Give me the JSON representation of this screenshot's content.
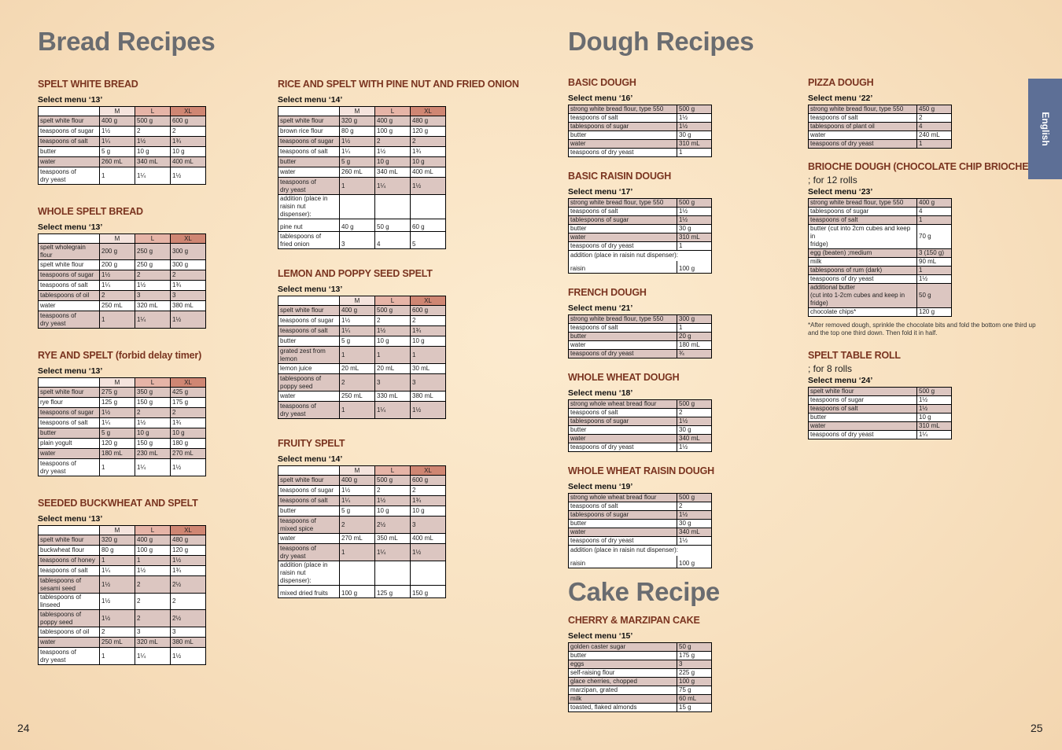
{
  "page_numbers": {
    "left": "24",
    "right": "25"
  },
  "tab_label": "English",
  "headings": {
    "bread": "Bread Recipes",
    "dough": "Dough Recipes",
    "cake": "Cake Recipe"
  },
  "size_headers": [
    "",
    "M",
    "L",
    "XL"
  ],
  "col_bread_1": [
    {
      "title": "SPELT WHITE BREAD",
      "menu": "Select menu ‘13’",
      "rows": [
        [
          "spelt white flour",
          "400 g",
          "500 g",
          "600 g"
        ],
        [
          "teaspoons of sugar",
          "1½",
          "2",
          "2"
        ],
        [
          "teaspoons of salt",
          "1¼",
          "1½",
          "1¾"
        ],
        [
          "butter",
          "5 g",
          "10 g",
          "10 g"
        ],
        [
          "water",
          "260 mL",
          "340 mL",
          "400 mL"
        ],
        [
          "teaspoons of\ndry yeast",
          "1",
          "1¼",
          "1½"
        ]
      ]
    },
    {
      "title": "WHOLE SPELT BREAD",
      "menu": "Select menu ‘13’",
      "rows": [
        [
          "spelt wholegrain flour",
          "200 g",
          "250 g",
          "300 g"
        ],
        [
          "spelt white flour",
          "200 g",
          "250 g",
          "300 g"
        ],
        [
          "teaspoons of sugar",
          "1½",
          "2",
          "2"
        ],
        [
          "teaspoons of salt",
          "1¼",
          "1½",
          "1¾"
        ],
        [
          "tablespoons of oil",
          "2",
          "3",
          "3"
        ],
        [
          "water",
          "250 mL",
          "320 mL",
          "380 mL"
        ],
        [
          "teaspoons of\ndry yeast",
          "1",
          "1¼",
          "1½"
        ]
      ]
    },
    {
      "title": "RYE AND SPELT (forbid delay timer)",
      "menu": "Select menu ‘13’",
      "rows": [
        [
          "spelt white flour",
          "275 g",
          "350 g",
          "425 g"
        ],
        [
          "rye flour",
          "125 g",
          "150 g",
          "175 g"
        ],
        [
          "teaspoons of sugar",
          "1½",
          "2",
          "2"
        ],
        [
          "teaspoons of salt",
          "1¼",
          "1½",
          "1¾"
        ],
        [
          "butter",
          "5 g",
          "10 g",
          "10 g"
        ],
        [
          "plain yogult",
          "120 g",
          "150 g",
          "180 g"
        ],
        [
          "water",
          "180 mL",
          "230 mL",
          "270 mL"
        ],
        [
          "teaspoons of\ndry yeast",
          "1",
          "1¼",
          "1½"
        ]
      ]
    },
    {
      "title": "SEEDED BUCKWHEAT AND SPELT",
      "menu": "Select menu ‘13’",
      "rows": [
        [
          "spelt white flour",
          "320 g",
          "400 g",
          "480 g"
        ],
        [
          "buckwheat flour",
          "80 g",
          "100 g",
          "120 g"
        ],
        [
          "teaspoons of honey",
          "1",
          "1",
          "1½"
        ],
        [
          "teaspoons of salt",
          "1¼",
          "1½",
          "1¾"
        ],
        [
          "tablespoons of\nsesami seed",
          "1½",
          "2",
          "2½"
        ],
        [
          "tablespoons of linseed",
          "1½",
          "2",
          "2"
        ],
        [
          "tablespoons of\npoppy seed",
          "1½",
          "2",
          "2½"
        ],
        [
          "tablespoons of oil",
          "2",
          "3",
          "3"
        ],
        [
          "water",
          "250 mL",
          "320 mL",
          "380 mL"
        ],
        [
          "teaspoons of\ndry yeast",
          "1",
          "1¼",
          "1½"
        ]
      ]
    }
  ],
  "col_bread_2": [
    {
      "title": "RICE AND SPELT WITH PINE NUT AND FRIED ONION",
      "menu": "Select menu ‘14’",
      "rows": [
        [
          "spelt white flour",
          "320 g",
          "400 g",
          "480 g"
        ],
        [
          "brown rice flour",
          "80 g",
          "100 g",
          "120 g"
        ],
        [
          "teaspoons of sugar",
          "1½",
          "2",
          "2"
        ],
        [
          "teaspoons of salt",
          "1¼",
          "1½",
          "1¾"
        ],
        [
          "butter",
          "5 g",
          "10 g",
          "10 g"
        ],
        [
          "water",
          "260 mL",
          "340 mL",
          "400 mL"
        ],
        [
          "teaspoons of\ndry yeast",
          "1",
          "1¼",
          "1½"
        ]
      ],
      "addition": "addition (place in\nraisin nut dispenser):",
      "extra_rows": [
        [
          "pine nut",
          "40 g",
          "50 g",
          "60 g"
        ],
        [
          "tablespoons of\nfried onion",
          "3",
          "4",
          "5"
        ]
      ]
    },
    {
      "title": "LEMON AND POPPY SEED SPELT",
      "menu": "Select menu ‘13’",
      "rows": [
        [
          "spelt white flour",
          "400 g",
          "500 g",
          "600 g"
        ],
        [
          "teaspoons of sugar",
          "1½",
          "2",
          "2"
        ],
        [
          "teaspoons of salt",
          "1¼",
          "1½",
          "1¾"
        ],
        [
          "butter",
          "5 g",
          "10 g",
          "10 g"
        ],
        [
          "grated zest from\nlemon",
          "1",
          "1",
          "1"
        ],
        [
          "lemon juice",
          "20 mL",
          "20 mL",
          "30 mL"
        ],
        [
          "tablespoons of\npoppy seed",
          "2",
          "3",
          "3"
        ],
        [
          "water",
          "250 mL",
          "330 mL",
          "380 mL"
        ],
        [
          "teaspoons of\ndry yeast",
          "1",
          "1¼",
          "1½"
        ]
      ]
    },
    {
      "title": "FRUITY SPELT",
      "menu": "Select menu ‘14’",
      "rows": [
        [
          "spelt white flour",
          "400 g",
          "500 g",
          "600 g"
        ],
        [
          "teaspoons of sugar",
          "1½",
          "2",
          "2"
        ],
        [
          "teaspoons of salt",
          "1¼",
          "1½",
          "1¾"
        ],
        [
          "butter",
          "5 g",
          "10 g",
          "10 g"
        ],
        [
          "teaspoons of\nmixed spice",
          "2",
          "2½",
          "3"
        ],
        [
          "water",
          "270 mL",
          "350 mL",
          "400 mL"
        ],
        [
          "teaspoons of\ndry yeast",
          "1",
          "1¼",
          "1½"
        ]
      ],
      "addition": "addition (place in\nraisin nut dispenser):",
      "extra_rows": [
        [
          "mixed dried fruits",
          "100 g",
          "125 g",
          "150 g"
        ]
      ]
    }
  ],
  "col_dough_1": [
    {
      "title": "BASIC DOUGH",
      "menu": "Select menu ‘16’",
      "rows": [
        [
          "strong white bread flour, type 550",
          "500 g"
        ],
        [
          "teaspoons of salt",
          "1½"
        ],
        [
          "tablespoons of sugar",
          "1½"
        ],
        [
          "butter",
          "30 g"
        ],
        [
          "water",
          "310 mL"
        ],
        [
          "teaspoons of dry yeast",
          "1"
        ]
      ]
    },
    {
      "title": "BASIC RAISIN DOUGH",
      "menu": "Select menu ‘17’",
      "rows": [
        [
          "strong white bread flour, type 550",
          "500 g"
        ],
        [
          "teaspoons of salt",
          "1½"
        ],
        [
          "tablespoons of sugar",
          "1½"
        ],
        [
          "butter",
          "30 g"
        ],
        [
          "water",
          "310 mL"
        ],
        [
          "teaspoons of dry yeast",
          "1"
        ]
      ],
      "addition": "addition (place in raisin nut dispenser):",
      "extra_rows": [
        [
          "raisin",
          "100 g"
        ]
      ]
    },
    {
      "title": "FRENCH DOUGH",
      "menu": "Select menu ‘21’",
      "rows": [
        [
          "strong white bread flour, type 550",
          "300 g"
        ],
        [
          "teaspoons of salt",
          "1"
        ],
        [
          "butter",
          "20 g"
        ],
        [
          "water",
          "180 mL"
        ],
        [
          "teaspoons of dry yeast",
          "¾"
        ]
      ]
    },
    {
      "title": "WHOLE WHEAT DOUGH",
      "menu": "Select menu ‘18’",
      "rows": [
        [
          "strong whole wheat bread flour",
          "500 g"
        ],
        [
          "teaspoons of salt",
          "2"
        ],
        [
          "tablespoons of sugar",
          "1½"
        ],
        [
          "butter",
          "30 g"
        ],
        [
          "water",
          "340 mL"
        ],
        [
          "teaspoons of dry yeast",
          "1½"
        ]
      ]
    },
    {
      "title": "WHOLE WHEAT RAISIN DOUGH",
      "menu": "Select menu ‘19’",
      "rows": [
        [
          "strong whole wheat bread flour",
          "500 g"
        ],
        [
          "teaspoons of salt",
          "2"
        ],
        [
          "tablespoons of sugar",
          "1½"
        ],
        [
          "butter",
          "30 g"
        ],
        [
          "water",
          "340 mL"
        ],
        [
          "teaspoons of dry yeast",
          "1½"
        ]
      ],
      "addition": "addition (place in raisin nut dispenser):",
      "extra_rows": [
        [
          "raisin",
          "100 g"
        ]
      ]
    }
  ],
  "cake": {
    "title": "CHERRY & MARZIPAN CAKE",
    "menu": "Select menu ‘15’",
    "rows": [
      [
        "golden caster sugar",
        "50 g"
      ],
      [
        "butter",
        "175 g"
      ],
      [
        "eggs",
        "3"
      ],
      [
        "self-raising flour",
        "225 g"
      ],
      [
        "glace cherries, chopped",
        "100 g"
      ],
      [
        "marzipan, grated",
        "75 g"
      ],
      [
        "milk",
        "60 mL"
      ],
      [
        "toasted, flaked almonds",
        "15 g"
      ]
    ]
  },
  "col_dough_2": [
    {
      "title": "PIZZA DOUGH",
      "menu": "Select menu ‘22’",
      "rows": [
        [
          "strong white bread flour, type 550",
          "450 g"
        ],
        [
          "teaspoons of salt",
          "2"
        ],
        [
          "tablespoons of plant oil",
          "4"
        ],
        [
          "water",
          "240 mL"
        ],
        [
          "teaspoons of dry yeast",
          "1"
        ]
      ]
    },
    {
      "title": "BRIOCHE DOUGH (CHOCOLATE CHIP BRIOCHE ROLL)",
      "subtitle": "; for 12 rolls",
      "menu": "Select menu ‘23’",
      "rows": [
        [
          "strong white bread flour, type 550",
          "400 g"
        ],
        [
          "tablespoons of sugar",
          "4"
        ],
        [
          "teaspoons of salt",
          "1"
        ],
        [
          "butter (cut into 2cm cubes and keep in\nfridge)",
          "70 g"
        ],
        [
          "egg (beaten) ;medium",
          "3 (150 g)"
        ],
        [
          "milk",
          "90 mL"
        ],
        [
          "tablespoons of rum (dark)",
          "1"
        ],
        [
          "teaspoons of dry yeast",
          "1½"
        ],
        [
          "additional butter\n(cut into 1-2cm cubes and keep in fridge)",
          "50 g"
        ],
        [
          "chocolate chips*",
          "120 g"
        ]
      ],
      "note": "*After removed dough, sprinkle the chocolate bits and fold the bottom one third up\n and the top one third down. Then fold it in half."
    },
    {
      "title": "SPELT TABLE ROLL",
      "subtitle": "; for 8 rolls",
      "menu": "Select menu ‘24’",
      "rows": [
        [
          "spelt white flour",
          "500 g"
        ],
        [
          "teaspoons of sugar",
          "1½"
        ],
        [
          "teaspoons of salt",
          "1½"
        ],
        [
          "butter",
          "10 g"
        ],
        [
          "water",
          "310 mL"
        ],
        [
          "teaspoons of dry yeast",
          "1¼"
        ]
      ]
    }
  ]
}
